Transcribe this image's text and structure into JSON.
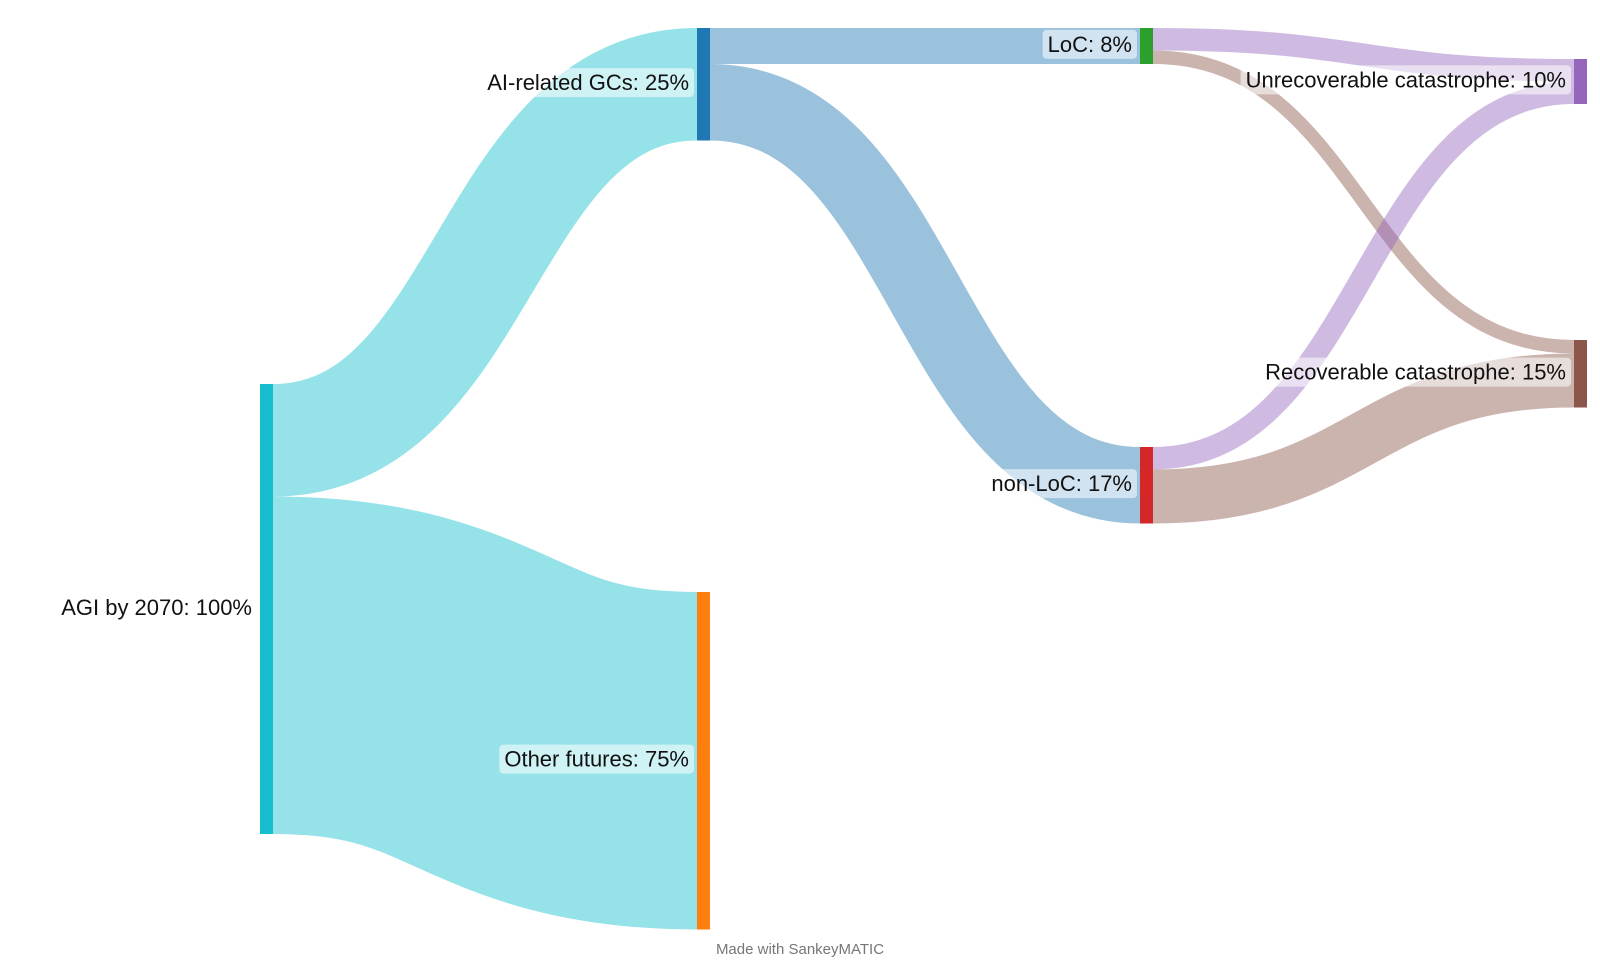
{
  "chart_data": {
    "type": "sankey",
    "footer": "Made with SankeyMATIC",
    "nodes": [
      {
        "label": "AGI by 2070: 100%",
        "value": 100,
        "color": "#17becf"
      },
      {
        "label": "AI-related GCs: 25%",
        "value": 25,
        "color": "#1f77b4"
      },
      {
        "label": "Other futures: 75%",
        "value": 75,
        "color": "#ff7f0e"
      },
      {
        "label": "LoC: 8%",
        "value": 8,
        "color": "#2ca02c"
      },
      {
        "label": "non-LoC: 17%",
        "value": 17,
        "color": "#d62728"
      },
      {
        "label": "Unrecoverable catastrophe: 10%",
        "value": 10,
        "color": "#9467bd"
      },
      {
        "label": "Recoverable catastrophe: 15%",
        "value": 15,
        "color": "#8c564b"
      }
    ],
    "links": [
      {
        "source": 0,
        "target": 1,
        "value": 25,
        "color": "#17becf"
      },
      {
        "source": 0,
        "target": 2,
        "value": 75,
        "color": "#17becf"
      },
      {
        "source": 1,
        "target": 3,
        "value": 8,
        "color": "#1f77b4"
      },
      {
        "source": 1,
        "target": 4,
        "value": 17,
        "color": "#1f77b4"
      },
      {
        "source": 3,
        "target": 5,
        "value": 5,
        "color": "#9467bd"
      },
      {
        "source": 3,
        "target": 6,
        "value": 3,
        "color": "#8c564b"
      },
      {
        "source": 4,
        "target": 5,
        "value": 5,
        "color": "#9467bd"
      },
      {
        "source": 4,
        "target": 6,
        "value": 12,
        "color": "#8c564b"
      }
    ]
  }
}
